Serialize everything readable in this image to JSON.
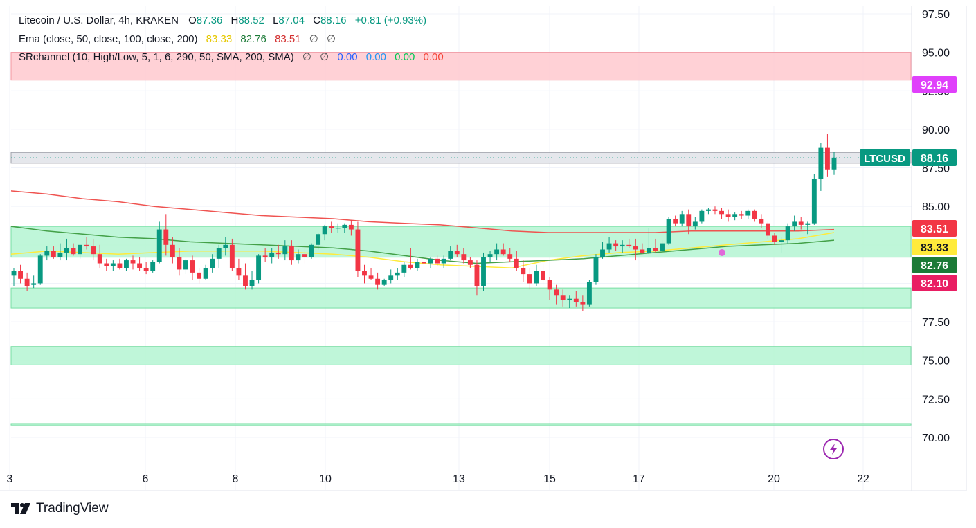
{
  "legend": {
    "line1": {
      "symbol": "Litecoin / U.S. Dollar, 4h, KRAKEN",
      "o_label": "O",
      "o": "87.36",
      "h_label": "H",
      "h": "88.52",
      "l_label": "L",
      "l": "87.04",
      "c_label": "C",
      "c": "88.16",
      "change": "+0.81 (+0.93%)"
    },
    "line2": {
      "name": "Ema (close, 50, close, 100, close, 200)",
      "v1": "83.33",
      "v2": "82.76",
      "v3": "83.51",
      "na1": "∅",
      "na2": "∅"
    },
    "line3": {
      "name": "SRchannel (10, High/Low, 5, 1, 6, 290, 50, SMA, 200, SMA)",
      "na1": "∅",
      "na2": "∅",
      "v1": "0.00",
      "v2": "0.00",
      "v3": "0.00",
      "v4": "0.00"
    }
  },
  "footer": {
    "brand": "TradingView"
  },
  "colors": {
    "up": "#089981",
    "down": "#f23645",
    "ema50": "#ffeb3b",
    "ema100": "#43a047",
    "ema200": "#ef5350",
    "resistance_fill": "#ffcdd2",
    "support_fill": "#b9f6d5",
    "grid": "#f0f3fa",
    "magenta_label": "#e040fb",
    "live_price": "#089981"
  },
  "chart_data": {
    "type": "candlestick",
    "title": "Litecoin / U.S. Dollar, 4h, KRAKEN",
    "ylim": [
      68.5,
      98
    ],
    "y_ticks": [
      "70.00",
      "72.50",
      "75.00",
      "77.50",
      "80.00",
      "82.50",
      "85.00",
      "87.50",
      "90.00",
      "92.50",
      "95.00",
      "97.50"
    ],
    "x_ticks": [
      "3",
      "6",
      "8",
      "10",
      "13",
      "15",
      "17",
      "20",
      "22"
    ],
    "price_labels": [
      {
        "text": "92.94",
        "value": 92.94,
        "color": "#e040fb"
      },
      {
        "text": "88.16",
        "value": 88.16,
        "color": "#089981",
        "tag": "LTCUSD"
      },
      {
        "text": "83.51",
        "value": 83.51,
        "color": "#f23645"
      },
      {
        "text": "83.33",
        "value": 83.33,
        "color": "#ffeb3b"
      },
      {
        "text": "82.76",
        "value": 82.76,
        "color": "#1b7a37"
      },
      {
        "text": "82.10",
        "value": 82.1,
        "color": "#e91e63"
      }
    ],
    "zones": [
      {
        "kind": "resistance",
        "from": 93.2,
        "to": 95.0
      },
      {
        "kind": "current",
        "from": 87.8,
        "to": 88.5
      },
      {
        "kind": "support",
        "from": 81.7,
        "to": 83.7
      },
      {
        "kind": "support",
        "from": 78.4,
        "to": 79.7
      },
      {
        "kind": "support",
        "from": 74.7,
        "to": 75.9
      },
      {
        "kind": "support",
        "from": 70.8,
        "to": 70.9
      }
    ],
    "series": [
      {
        "name": "EMA 50",
        "color": "#ffeb3b",
        "y": [
          81.9,
          82.1,
          82.0,
          81.9,
          82.0,
          82.1,
          82.1,
          82.1,
          82.0,
          81.9,
          81.7,
          81.4,
          81.2,
          81.1,
          81.0,
          81.5,
          81.8,
          82.0,
          82.1,
          82.3,
          82.5,
          82.7,
          82.9,
          83.3
        ]
      },
      {
        "name": "EMA 100",
        "color": "#43a047",
        "y": [
          83.7,
          83.4,
          83.2,
          83.0,
          82.9,
          82.7,
          82.6,
          82.5,
          82.4,
          82.3,
          82.1,
          81.8,
          81.5,
          81.3,
          81.4,
          81.5,
          81.6,
          81.8,
          82.0,
          82.2,
          82.4,
          82.5,
          82.6,
          82.8
        ]
      },
      {
        "name": "EMA 200",
        "color": "#ef5350",
        "y": [
          86.0,
          85.8,
          85.5,
          85.3,
          85.0,
          84.8,
          84.6,
          84.4,
          84.3,
          84.2,
          84.0,
          83.9,
          83.8,
          83.6,
          83.4,
          83.3,
          83.3,
          83.3,
          83.3,
          83.4,
          83.4,
          83.4,
          83.4,
          83.5
        ]
      }
    ],
    "candles": [
      [
        80.5,
        81.0,
        79.8,
        80.8
      ],
      [
        80.8,
        81.2,
        80.0,
        80.3
      ],
      [
        80.3,
        80.7,
        79.5,
        79.8
      ],
      [
        79.9,
        80.5,
        79.7,
        80.0
      ],
      [
        80.0,
        81.9,
        79.9,
        81.8
      ],
      [
        81.8,
        82.4,
        81.5,
        82.1
      ],
      [
        82.1,
        82.4,
        81.6,
        81.7
      ],
      [
        81.7,
        82.6,
        81.5,
        82.0
      ],
      [
        82.0,
        82.9,
        81.5,
        82.3
      ],
      [
        82.3,
        82.6,
        81.8,
        81.9
      ],
      [
        81.9,
        82.3,
        81.6,
        82.5
      ],
      [
        82.5,
        83.0,
        82.2,
        82.4
      ],
      [
        82.4,
        82.9,
        81.5,
        81.9
      ],
      [
        81.9,
        82.5,
        81.0,
        81.3
      ],
      [
        81.3,
        81.6,
        80.8,
        81.1
      ],
      [
        81.1,
        81.5,
        80.8,
        81.3
      ],
      [
        81.3,
        81.6,
        80.9,
        81.0
      ],
      [
        81.0,
        81.6,
        80.8,
        81.5
      ],
      [
        81.5,
        81.8,
        80.9,
        81.3
      ],
      [
        81.3,
        81.7,
        80.8,
        81.0
      ],
      [
        81.0,
        81.4,
        80.6,
        80.8
      ],
      [
        80.8,
        81.5,
        80.7,
        81.4
      ],
      [
        81.4,
        84.0,
        81.3,
        83.5
      ],
      [
        83.5,
        84.5,
        81.8,
        82.5
      ],
      [
        82.5,
        83.0,
        81.3,
        81.7
      ],
      [
        81.7,
        82.3,
        80.5,
        80.9
      ],
      [
        80.9,
        81.6,
        80.6,
        81.5
      ],
      [
        81.5,
        81.8,
        80.2,
        80.7
      ],
      [
        80.7,
        81.0,
        80.0,
        80.3
      ],
      [
        80.3,
        81.2,
        80.2,
        81.0
      ],
      [
        81.0,
        81.9,
        80.7,
        81.6
      ],
      [
        81.6,
        82.5,
        81.0,
        82.3
      ],
      [
        82.3,
        83.0,
        81.8,
        82.5
      ],
      [
        82.5,
        82.9,
        80.8,
        81.0
      ],
      [
        81.0,
        81.6,
        80.2,
        80.5
      ],
      [
        80.5,
        81.3,
        79.6,
        79.8
      ],
      [
        79.8,
        80.8,
        79.6,
        80.2
      ],
      [
        80.2,
        81.9,
        80.0,
        81.8
      ],
      [
        81.8,
        82.3,
        81.4,
        81.7
      ],
      [
        81.7,
        82.3,
        81.3,
        82.0
      ],
      [
        82.0,
        82.5,
        81.6,
        81.9
      ],
      [
        81.9,
        82.8,
        81.5,
        82.4
      ],
      [
        82.4,
        82.8,
        81.2,
        81.5
      ],
      [
        81.5,
        82.2,
        81.3,
        81.9
      ],
      [
        81.9,
        82.5,
        81.3,
        81.7
      ],
      [
        81.7,
        82.6,
        81.6,
        82.5
      ],
      [
        82.5,
        83.3,
        82.2,
        83.2
      ],
      [
        83.2,
        83.8,
        82.8,
        83.7
      ],
      [
        83.7,
        84.0,
        83.3,
        83.6
      ],
      [
        83.6,
        83.9,
        83.3,
        83.6
      ],
      [
        83.6,
        83.9,
        83.3,
        83.8
      ],
      [
        83.8,
        84.1,
        83.1,
        83.5
      ],
      [
        83.5,
        84.0,
        80.4,
        80.8
      ],
      [
        80.8,
        81.2,
        80.0,
        80.5
      ],
      [
        80.5,
        81.0,
        80.2,
        80.3
      ],
      [
        80.3,
        80.7,
        79.6,
        79.9
      ],
      [
        79.9,
        80.3,
        79.8,
        80.2
      ],
      [
        80.2,
        80.9,
        80.0,
        80.5
      ],
      [
        80.5,
        81.0,
        80.2,
        80.7
      ],
      [
        80.7,
        81.4,
        80.4,
        81.2
      ],
      [
        81.2,
        82.3,
        80.9,
        81.0
      ],
      [
        81.0,
        81.6,
        80.8,
        81.4
      ],
      [
        81.4,
        81.9,
        81.1,
        81.3
      ],
      [
        81.3,
        81.7,
        81.0,
        81.6
      ],
      [
        81.6,
        81.8,
        81.1,
        81.3
      ],
      [
        81.3,
        81.8,
        81.0,
        81.6
      ],
      [
        81.6,
        82.4,
        81.5,
        82.1
      ],
      [
        82.1,
        82.5,
        81.7,
        81.9
      ],
      [
        81.9,
        82.3,
        81.3,
        81.5
      ],
      [
        81.5,
        81.7,
        81.0,
        81.2
      ],
      [
        81.2,
        81.5,
        79.2,
        79.8
      ],
      [
        79.8,
        82.0,
        79.5,
        81.7
      ],
      [
        81.7,
        82.1,
        81.4,
        81.9
      ],
      [
        81.9,
        82.6,
        81.5,
        82.2
      ],
      [
        82.2,
        82.6,
        81.8,
        81.9
      ],
      [
        81.9,
        82.3,
        81.4,
        81.6
      ],
      [
        81.6,
        82.1,
        80.8,
        81.0
      ],
      [
        81.0,
        81.5,
        80.1,
        80.6
      ],
      [
        80.6,
        81.0,
        79.6,
        80.0
      ],
      [
        80.0,
        81.2,
        79.8,
        80.8
      ],
      [
        80.8,
        81.3,
        79.9,
        80.2
      ],
      [
        80.2,
        80.4,
        78.9,
        79.6
      ],
      [
        79.6,
        79.9,
        78.6,
        79.2
      ],
      [
        79.2,
        79.6,
        78.5,
        78.9
      ],
      [
        78.9,
        79.2,
        78.4,
        79.0
      ],
      [
        79.0,
        79.5,
        78.5,
        78.8
      ],
      [
        78.8,
        79.2,
        78.2,
        78.6
      ],
      [
        78.6,
        80.2,
        78.5,
        80.1
      ],
      [
        80.1,
        81.9,
        79.9,
        81.7
      ],
      [
        81.7,
        82.7,
        81.6,
        82.2
      ],
      [
        82.2,
        83.0,
        82.0,
        82.6
      ],
      [
        82.6,
        82.8,
        82.1,
        82.4
      ],
      [
        82.4,
        82.8,
        82.0,
        82.5
      ],
      [
        82.5,
        82.9,
        82.3,
        82.4
      ],
      [
        82.4,
        82.9,
        81.5,
        82.2
      ],
      [
        82.2,
        82.6,
        81.9,
        82.0
      ],
      [
        82.0,
        83.6,
        81.9,
        82.3
      ],
      [
        82.3,
        82.9,
        82.0,
        82.1
      ],
      [
        82.1,
        82.8,
        82.0,
        82.6
      ],
      [
        82.6,
        84.3,
        82.5,
        84.2
      ],
      [
        84.2,
        84.4,
        83.7,
        83.9
      ],
      [
        83.9,
        84.7,
        83.7,
        84.5
      ],
      [
        84.5,
        84.8,
        83.2,
        83.7
      ],
      [
        83.7,
        84.3,
        83.5,
        84.0
      ],
      [
        84.0,
        84.8,
        83.9,
        84.7
      ],
      [
        84.7,
        84.9,
        84.5,
        84.8
      ],
      [
        84.8,
        85.0,
        84.5,
        84.7
      ],
      [
        84.7,
        84.9,
        84.2,
        84.5
      ],
      [
        84.5,
        84.8,
        84.0,
        84.3
      ],
      [
        84.3,
        84.6,
        84.1,
        84.5
      ],
      [
        84.5,
        84.7,
        84.2,
        84.4
      ],
      [
        84.4,
        84.8,
        84.2,
        84.7
      ],
      [
        84.7,
        84.8,
        84.0,
        84.2
      ],
      [
        84.2,
        84.5,
        83.6,
        83.9
      ],
      [
        83.9,
        84.0,
        82.9,
        83.1
      ],
      [
        83.1,
        83.3,
        82.5,
        82.7
      ],
      [
        82.7,
        83.0,
        82.0,
        82.8
      ],
      [
        82.8,
        83.9,
        82.6,
        83.7
      ],
      [
        83.7,
        84.4,
        83.4,
        84.0
      ],
      [
        84.0,
        84.3,
        83.5,
        83.8
      ],
      [
        83.8,
        84.0,
        83.2,
        83.9
      ],
      [
        83.9,
        87.1,
        83.8,
        86.8
      ],
      [
        86.8,
        89.1,
        86.0,
        88.8
      ],
      [
        88.8,
        89.7,
        86.9,
        87.4
      ],
      [
        87.4,
        88.52,
        87.04,
        88.16
      ]
    ]
  }
}
